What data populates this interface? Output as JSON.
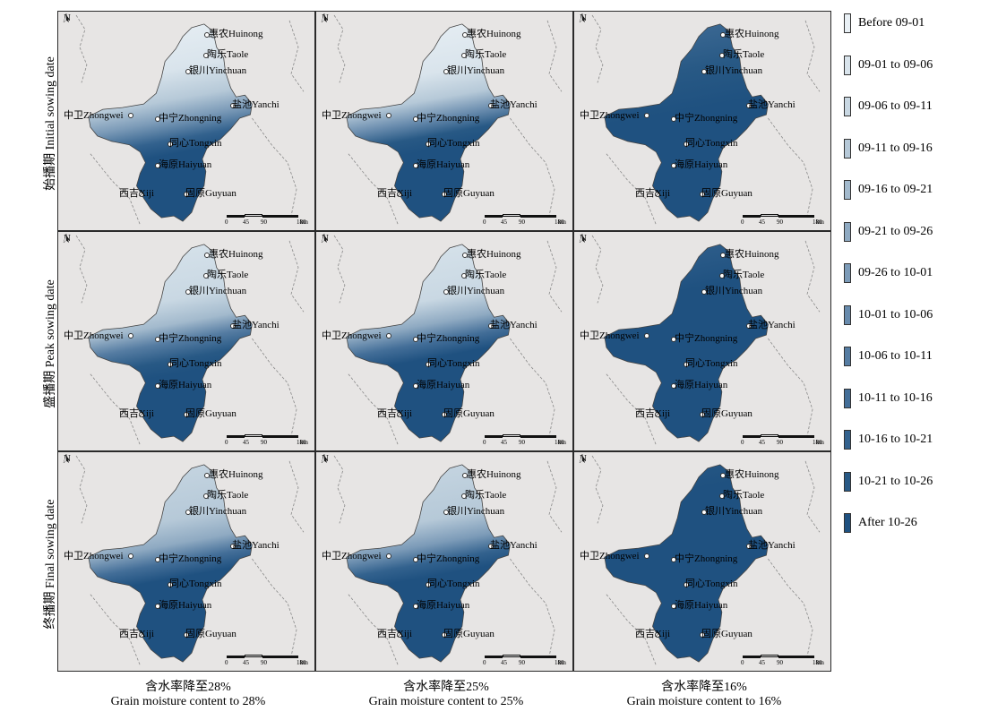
{
  "rows": [
    {
      "label": "始播期 Initial sowing date"
    },
    {
      "label": "盛播期 Peak sowing date"
    },
    {
      "label": "终播期 Final sowing date"
    }
  ],
  "columns": [
    {
      "zh": "含水率降至28%",
      "en": "Grain moisture content to 28%"
    },
    {
      "zh": "含水率降至25%",
      "en": "Grain moisture content to 25%"
    },
    {
      "zh": "含水率降至16%",
      "en": "Grain moisture content to 16%"
    }
  ],
  "cities": {
    "huinong": "惠农Huinong",
    "taole": "陶乐Taole",
    "yinchuan": "银川Yinchuan",
    "yanchi": "盐池Yanchi",
    "zhongwei": "中卫Zhongwei",
    "zhongning": "中宁Zhongning",
    "tongxin": "同心Tongxin",
    "haiyuan": "海原Haiyuan",
    "xiji": "西吉Xiji",
    "guyuan": "固原Guyuan"
  },
  "map": {
    "north_label": "N",
    "scale_labels": [
      "0",
      "45",
      "90",
      "180"
    ],
    "scale_unit": "km"
  },
  "legend": [
    {
      "label": "Before 09-01",
      "color": "#e9f0f5"
    },
    {
      "label": "09-01 to 09-06",
      "color": "#d9e4ec"
    },
    {
      "label": "09-06 to 09-11",
      "color": "#c9d8e3"
    },
    {
      "label": "09-11 to 09-16",
      "color": "#b6c9d8"
    },
    {
      "label": "09-16 to 09-21",
      "color": "#a3bacd"
    },
    {
      "label": "09-21 to 09-26",
      "color": "#8faac2"
    },
    {
      "label": "09-26 to 10-01",
      "color": "#7c9bb8"
    },
    {
      "label": "10-01 to 10-06",
      "color": "#688bad"
    },
    {
      "label": "10-06 to 10-11",
      "color": "#557ca2"
    },
    {
      "label": "10-11 to 10-16",
      "color": "#436e98"
    },
    {
      "label": "10-16 to 10-21",
      "color": "#33628e"
    },
    {
      "label": "10-21 to 10-26",
      "color": "#285985"
    },
    {
      "label": "After 10-26",
      "color": "#1f5180"
    }
  ]
}
